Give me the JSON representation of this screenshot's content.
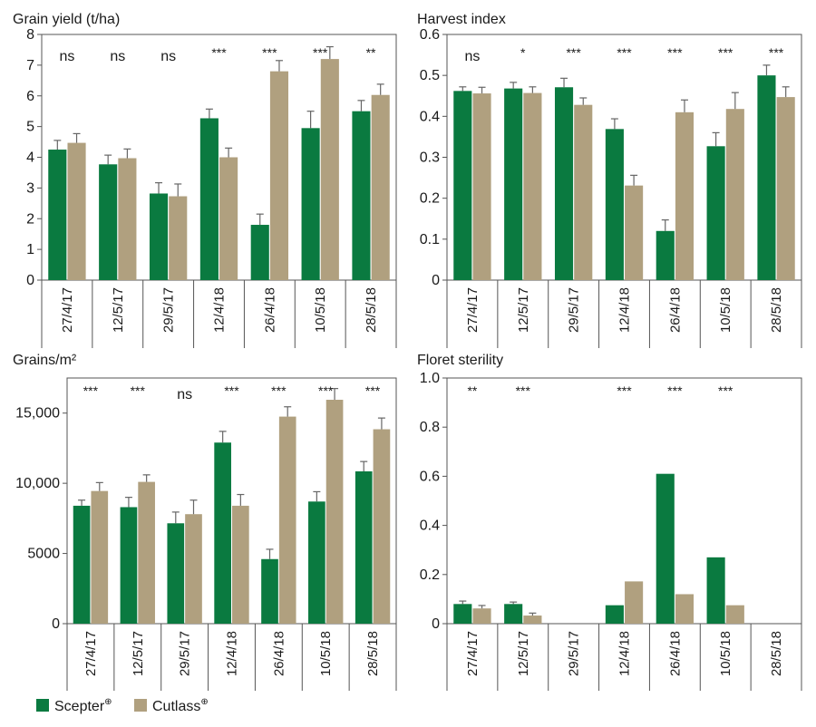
{
  "colors": {
    "scepter": "#0a7a40",
    "cutlass": "#b0a07f"
  },
  "legend": {
    "series": [
      {
        "name": "Scepter",
        "mark": "⊕"
      },
      {
        "name": "Cutlass",
        "mark": "⊕"
      }
    ]
  },
  "chart_data": [
    {
      "type": "bar",
      "title": "Grain yield (t/ha)",
      "categories": [
        "27/4/17",
        "12/5/17",
        "29/5/17",
        "12/4/18",
        "26/4/18",
        "10/5/18",
        "28/5/18"
      ],
      "ylim": [
        0,
        8
      ],
      "yticks": [
        0,
        1,
        2,
        3,
        4,
        5,
        6,
        7,
        8
      ],
      "ytick_labels": [
        "0",
        "1",
        "2",
        "3",
        "4",
        "5",
        "6",
        "7",
        "8"
      ],
      "series": [
        {
          "name": "Scepter",
          "values": [
            4.25,
            3.77,
            2.82,
            5.27,
            1.8,
            4.95,
            5.5
          ],
          "errors": [
            0.3,
            0.3,
            0.35,
            0.3,
            0.35,
            0.55,
            0.35
          ]
        },
        {
          "name": "Cutlass",
          "values": [
            4.47,
            3.97,
            2.73,
            4.0,
            6.8,
            7.2,
            6.03
          ],
          "errors": [
            0.3,
            0.3,
            0.4,
            0.3,
            0.35,
            0.4,
            0.35
          ]
        }
      ],
      "significance": [
        "ns",
        "ns",
        "ns",
        "***",
        "***",
        "***",
        "**"
      ],
      "grid": false
    },
    {
      "type": "bar",
      "title": "Harvest index",
      "categories": [
        "27/4/17",
        "12/5/17",
        "29/5/17",
        "12/4/18",
        "26/4/18",
        "10/5/18",
        "28/5/18"
      ],
      "ylim": [
        0,
        0.6
      ],
      "yticks": [
        0,
        0.1,
        0.2,
        0.3,
        0.4,
        0.5,
        0.6
      ],
      "ytick_labels": [
        "0",
        "0.1",
        "0.2",
        "0.3",
        "0.4",
        "0.5",
        "0.6"
      ],
      "series": [
        {
          "name": "Scepter",
          "values": [
            0.462,
            0.468,
            0.471,
            0.369,
            0.12,
            0.327,
            0.5
          ],
          "errors": [
            0.01,
            0.015,
            0.022,
            0.025,
            0.027,
            0.033,
            0.025
          ]
        },
        {
          "name": "Cutlass",
          "values": [
            0.456,
            0.457,
            0.428,
            0.231,
            0.41,
            0.418,
            0.447
          ],
          "errors": [
            0.015,
            0.015,
            0.017,
            0.025,
            0.03,
            0.04,
            0.025
          ]
        }
      ],
      "significance": [
        "ns",
        "*",
        "***",
        "***",
        "***",
        "***",
        "***"
      ],
      "grid": false
    },
    {
      "type": "bar",
      "title": "Grains/m²",
      "categories": [
        "27/4/17",
        "12/5/17",
        "29/5/17",
        "12/4/18",
        "26/4/18",
        "10/5/18",
        "28/5/18"
      ],
      "ylim": [
        0,
        17500
      ],
      "yticks": [
        0,
        5000,
        10000,
        15000
      ],
      "ytick_labels": [
        "0",
        "5000",
        "10,000",
        "15,000"
      ],
      "series": [
        {
          "name": "Scepter",
          "values": [
            8400,
            8300,
            7150,
            12900,
            4600,
            8700,
            10850
          ],
          "errors": [
            400,
            700,
            800,
            800,
            700,
            700,
            700
          ]
        },
        {
          "name": "Cutlass",
          "values": [
            9450,
            10100,
            7800,
            8400,
            14750,
            15950,
            13850
          ],
          "errors": [
            600,
            500,
            1000,
            800,
            700,
            800,
            800
          ]
        }
      ],
      "significance": [
        "***",
        "***",
        "ns",
        "***",
        "***",
        "***",
        "***"
      ],
      "grid": false
    },
    {
      "type": "bar",
      "title": "Floret sterility",
      "categories": [
        "27/4/17",
        "12/5/17",
        "29/5/17",
        "12/4/18",
        "26/4/18",
        "10/5/18",
        "28/5/18"
      ],
      "ylim": [
        0,
        1.0
      ],
      "yticks": [
        0,
        0.2,
        0.4,
        0.6,
        0.8,
        1.0
      ],
      "ytick_labels": [
        "0",
        "0.2",
        "0.4",
        "0.6",
        "0.8",
        "1.0"
      ],
      "series": [
        {
          "name": "Scepter",
          "values": [
            0.08,
            0.08,
            null,
            0.075,
            0.61,
            0.27,
            null
          ],
          "errors": [
            0.012,
            0.008,
            null,
            null,
            null,
            null,
            null
          ]
        },
        {
          "name": "Cutlass",
          "values": [
            0.062,
            0.033,
            null,
            0.172,
            0.12,
            0.075,
            null
          ],
          "errors": [
            0.012,
            0.01,
            null,
            null,
            null,
            null,
            null
          ]
        }
      ],
      "significance": [
        "**",
        "***",
        "",
        "***",
        "***",
        "***",
        ""
      ],
      "grid": false
    }
  ]
}
